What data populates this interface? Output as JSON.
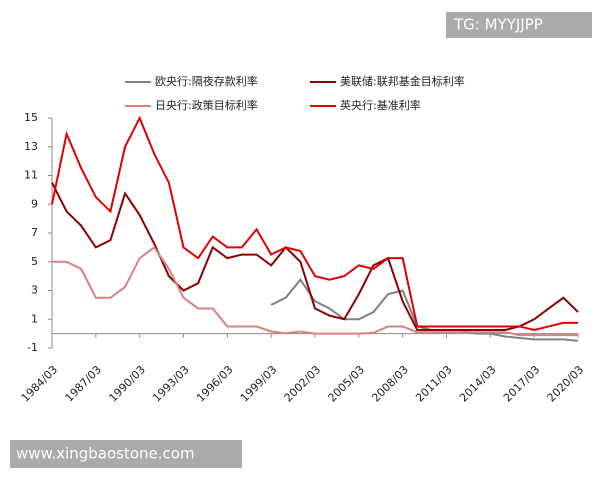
{
  "chart_data": {
    "type": "line",
    "watermarks": [
      "TG: MYYJJPP",
      "www.xingbaostone.com"
    ],
    "x": [
      "1984/03",
      "1985/03",
      "1986/03",
      "1987/03",
      "1988/03",
      "1989/03",
      "1990/03",
      "1991/03",
      "1992/03",
      "1993/03",
      "1994/03",
      "1995/03",
      "1996/03",
      "1997/03",
      "1998/03",
      "1999/03",
      "2000/03",
      "2001/03",
      "2002/03",
      "2003/03",
      "2004/03",
      "2005/03",
      "2006/03",
      "2007/03",
      "2008/03",
      "2009/03",
      "2010/03",
      "2011/03",
      "2012/03",
      "2013/03",
      "2014/03",
      "2015/03",
      "2016/03",
      "2017/03",
      "2018/03",
      "2019/03",
      "2020/03"
    ],
    "xticks": [
      "1984/03",
      "1987/03",
      "1990/03",
      "1993/03",
      "1996/03",
      "1999/03",
      "2002/03",
      "2005/03",
      "2008/03",
      "2011/03",
      "2014/03",
      "2017/03",
      "2020/03"
    ],
    "ylim": [
      -1,
      15
    ],
    "yticks": [
      -1,
      1,
      3,
      5,
      7,
      9,
      11,
      13,
      15
    ],
    "series": [
      {
        "name": "欧央行:隔夜存款利率",
        "color": "#808080",
        "values": [
          null,
          null,
          null,
          null,
          null,
          null,
          null,
          null,
          null,
          null,
          null,
          null,
          null,
          null,
          null,
          2.0,
          2.5,
          3.75,
          2.25,
          1.75,
          1.0,
          1.0,
          1.5,
          2.75,
          3.0,
          0.5,
          0.25,
          0.25,
          0.25,
          0,
          0,
          -0.2,
          -0.3,
          -0.4,
          -0.4,
          -0.4,
          -0.5
        ]
      },
      {
        "name": "美联储:联邦基金目标利率",
        "color": "#8b0000",
        "values": [
          10.5,
          8.5,
          7.5,
          6.0,
          6.5,
          9.75,
          8.25,
          6.25,
          4.0,
          3.0,
          3.5,
          6.0,
          5.25,
          5.5,
          5.5,
          4.75,
          6.0,
          5.0,
          1.75,
          1.25,
          1.0,
          2.75,
          4.75,
          5.25,
          2.25,
          0.25,
          0.25,
          0.25,
          0.25,
          0.25,
          0.25,
          0.25,
          0.5,
          1.0,
          1.75,
          2.5,
          1.5
        ]
      },
      {
        "name": "日央行:政策目标利率",
        "color": "#d98080",
        "values": [
          5,
          5,
          4.5,
          2.5,
          2.5,
          3.25,
          5.25,
          6.0,
          4.5,
          2.5,
          1.75,
          1.75,
          0.5,
          0.5,
          0.5,
          0.15,
          0.02,
          0.15,
          0,
          0,
          0,
          0,
          0.05,
          0.5,
          0.5,
          0.1,
          0.1,
          0.1,
          0.1,
          0.1,
          0.1,
          0.1,
          -0.1,
          -0.1,
          -0.1,
          -0.1,
          -0.1
        ]
      },
      {
        "name": "英央行:基准利率",
        "color": "#e00000",
        "values": [
          9,
          13.9,
          11.5,
          9.5,
          8.5,
          13,
          15,
          12.5,
          10.5,
          6,
          5.25,
          6.75,
          6.0,
          6.0,
          7.25,
          5.5,
          6.0,
          5.75,
          4.0,
          3.75,
          4.0,
          4.75,
          4.5,
          5.25,
          5.25,
          0.5,
          0.5,
          0.5,
          0.5,
          0.5,
          0.5,
          0.5,
          0.5,
          0.25,
          0.5,
          0.75,
          0.75
        ]
      }
    ]
  }
}
